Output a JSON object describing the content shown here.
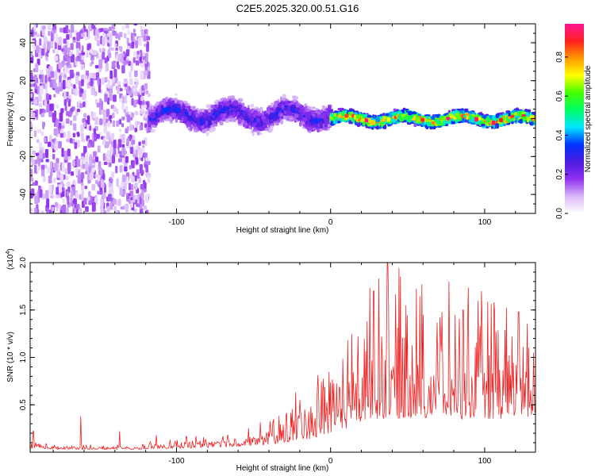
{
  "title": "C2E5.2025.320.00.51.G16",
  "colormap": {
    "label": "Normalized spectral amplitude",
    "ticks": [
      "0.0",
      "0.2",
      "0.4",
      "0.6",
      "0.8"
    ],
    "tick_values": [
      0.0,
      0.2,
      0.4,
      0.6,
      0.8
    ],
    "range": [
      0,
      0.97
    ],
    "stops": [
      "#ffffff",
      "#d8b8f8",
      "#9030f0",
      "#4a1ce0",
      "#0033ff",
      "#00e5ff",
      "#00ff66",
      "#44ff00",
      "#ffff00",
      "#ff9900",
      "#ff2020",
      "#ff1493"
    ]
  },
  "chart_data": [
    {
      "type": "heatmap",
      "title": "C2E5.2025.320.00.51.G16",
      "xlabel": "Height of straight line (km)",
      "ylabel": "Frequency (Hz)",
      "xlim": [
        -195,
        133
      ],
      "ylim": [
        -50,
        50
      ],
      "xticks": [
        -100,
        0,
        100
      ],
      "xtick_labels": [
        "-100",
        "0",
        "100"
      ],
      "yticks": [
        -40,
        -20,
        0,
        20,
        40
      ],
      "ytick_labels": [
        "-40",
        "-20",
        "0",
        "20",
        "40"
      ],
      "regions": [
        {
          "x_range": [
            -195,
            -118
          ],
          "description": "broadband noise",
          "amplitude": 0.12
        },
        {
          "x_range": [
            -118,
            0
          ],
          "center_freq_hz": 2,
          "band_halfwidth_hz": 8,
          "amplitude": 0.3
        },
        {
          "x_range": [
            0,
            133
          ],
          "center_freq_hz": 0,
          "band_halfwidth_hz": 4,
          "amplitude": 0.8
        }
      ]
    },
    {
      "type": "line",
      "xlabel": "Height of straight line (km)",
      "ylabel": "SNR (10 * v/v)",
      "y_scale_label": "(x10",
      "y_scale_exponent": "4",
      "y_scale": 10000,
      "xlim": [
        -195,
        133
      ],
      "ylim": [
        0,
        2.0
      ],
      "xticks": [
        -100,
        0,
        100
      ],
      "xtick_labels": [
        "-100",
        "0",
        "100"
      ],
      "yticks": [
        0.5,
        1.0,
        1.5,
        2.0
      ],
      "ytick_labels": [
        "0.5",
        "1.0",
        "1.5",
        "2.0"
      ],
      "series": [
        {
          "name": "SNR",
          "color": "#ee2222",
          "envelope": {
            "x": [
              -195,
              -190,
              -180,
              -170,
              -162,
              -150,
              -137,
              -130,
              -120,
              -110,
              -100,
              -80,
              -60,
              -50,
              -40,
              -30,
              -20,
              -10,
              0,
              10,
              20,
              30,
              40,
              50,
              60,
              70,
              80,
              90,
              100,
              110,
              120,
              133
            ],
            "baseline": [
              0.04,
              0.04,
              0.03,
              0.03,
              0.03,
              0.03,
              0.03,
              0.03,
              0.03,
              0.04,
              0.04,
              0.05,
              0.06,
              0.07,
              0.08,
              0.1,
              0.12,
              0.15,
              0.2,
              0.25,
              0.3,
              0.35,
              0.35,
              0.35,
              0.35,
              0.35,
              0.35,
              0.35,
              0.35,
              0.35,
              0.35,
              0.35
            ],
            "amplitude": [
              0.08,
              0.06,
              0.03,
              0.03,
              0.04,
              0.03,
              0.04,
              0.03,
              0.05,
              0.05,
              0.08,
              0.1,
              0.12,
              0.14,
              0.2,
              0.3,
              0.4,
              0.5,
              0.65,
              0.8,
              0.95,
              1.05,
              1.1,
              1.0,
              1.0,
              1.0,
              0.95,
              0.95,
              0.95,
              0.95,
              0.9,
              0.9
            ]
          },
          "peaks": [
            {
              "x": -193,
              "y": 0.22
            },
            {
              "x": -162,
              "y": 0.38
            },
            {
              "x": -137,
              "y": 0.22
            },
            {
              "x": -113,
              "y": 0.18
            },
            {
              "x": 28,
              "y": 1.7
            },
            {
              "x": 37,
              "y": 2.0
            },
            {
              "x": 49,
              "y": 1.55
            },
            {
              "x": 60,
              "y": 1.45
            },
            {
              "x": 86,
              "y": 1.5
            },
            {
              "x": 122,
              "y": 1.48
            }
          ]
        }
      ]
    }
  ]
}
